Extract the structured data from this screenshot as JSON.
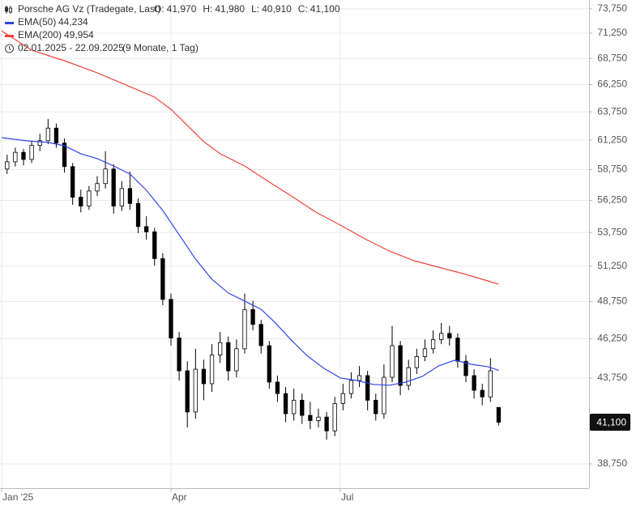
{
  "chart_data": {
    "type": "candlestick",
    "title": "Porsche AG Vz (Tradegate, Last)",
    "ohlc_labels": [
      {
        "key": "O:",
        "text": "41,970"
      },
      {
        "key": "H:",
        "text": "41,980"
      },
      {
        "key": "L:",
        "text": "40,910"
      },
      {
        "key": "C:",
        "text": "41,100"
      }
    ],
    "date_range": "02.01.2025 - 22.09.2025",
    "period": "(9 Monate, 1 Tag)",
    "log_scale": true,
    "grid": true,
    "ylim": [
      37440,
      74674
    ],
    "yticks": [
      {
        "value": 73750,
        "label": "73,750"
      },
      {
        "value": 71250,
        "label": "71,250"
      },
      {
        "value": 68750,
        "label": "68,750"
      },
      {
        "value": 66250,
        "label": "66,250"
      },
      {
        "value": 63750,
        "label": "63,750"
      },
      {
        "value": 61250,
        "label": "61,250"
      },
      {
        "value": 58750,
        "label": "58,750"
      },
      {
        "value": 56250,
        "label": "56,250"
      },
      {
        "value": 53750,
        "label": "53,750"
      },
      {
        "value": 51250,
        "label": "51,250"
      },
      {
        "value": 48750,
        "label": "48,750"
      },
      {
        "value": 46250,
        "label": "46,250"
      },
      {
        "value": 43750,
        "label": "43,750"
      },
      {
        "value": 38750,
        "label": "38,750"
      }
    ],
    "xlim": [
      -0.6,
      215.1
    ],
    "xticks": [
      {
        "value": 0,
        "label": "Jan '25"
      },
      {
        "value": 62,
        "label": "Apr"
      },
      {
        "value": 124,
        "label": "Jul"
      }
    ],
    "candles": {
      "up_color": "#ffffff",
      "down_color": "#000000",
      "x": [
        2,
        5,
        8,
        11,
        14,
        17,
        20,
        23,
        26,
        29,
        32,
        35,
        38,
        41,
        44,
        47,
        50,
        53,
        56,
        59,
        62,
        65,
        68,
        71,
        74,
        77,
        80,
        83,
        86,
        89,
        92,
        95,
        98,
        101,
        104,
        107,
        110,
        113,
        116,
        119,
        122,
        125,
        128,
        131,
        134,
        137,
        140,
        143,
        146,
        149,
        152,
        155,
        158,
        161,
        164,
        167,
        170,
        173,
        176,
        179,
        182
      ],
      "open": [
        58800,
        59400,
        60200,
        59600,
        60800,
        61200,
        62300,
        61000,
        59000,
        56500,
        55800,
        57000,
        57600,
        58800,
        55800,
        57200,
        56000,
        54200,
        53800,
        51800,
        48900,
        46300,
        44200,
        41700,
        44300,
        43400,
        45200,
        46000,
        44200,
        45600,
        48200,
        47200,
        45800,
        43500,
        42800,
        41600,
        42400,
        41500,
        41200,
        41400,
        40600,
        42200,
        42800,
        43600,
        43900,
        42400,
        41600,
        43800,
        45800,
        43300,
        44400,
        45100,
        45600,
        46200,
        46600,
        46300,
        44800,
        43900,
        43000,
        42600,
        41970
      ],
      "high": [
        60000,
        60600,
        60500,
        61200,
        61800,
        63100,
        62700,
        61400,
        59300,
        57100,
        57400,
        58200,
        60300,
        59200,
        57800,
        58600,
        56400,
        55000,
        54100,
        52200,
        49300,
        46700,
        44800,
        45600,
        44900,
        45900,
        46700,
        46400,
        46200,
        49300,
        48800,
        47500,
        46100,
        43900,
        43200,
        43100,
        42800,
        42300,
        41900,
        41700,
        42600,
        43400,
        44100,
        44500,
        44200,
        42800,
        44600,
        47100,
        46100,
        44900,
        45600,
        46200,
        46800,
        47300,
        47100,
        46600,
        45200,
        44300,
        43400,
        45000,
        41980
      ],
      "low": [
        58400,
        59000,
        59100,
        59300,
        60300,
        60900,
        60600,
        58500,
        55900,
        55300,
        55500,
        56600,
        57200,
        55200,
        55400,
        55500,
        53700,
        53200,
        51300,
        48500,
        45800,
        43600,
        40800,
        41300,
        42400,
        42900,
        44700,
        43600,
        43800,
        45300,
        46800,
        45300,
        43100,
        42300,
        41100,
        41200,
        41000,
        40700,
        40800,
        40100,
        40300,
        41800,
        42500,
        43200,
        41800,
        41200,
        41300,
        43500,
        42700,
        43000,
        44000,
        44800,
        45300,
        45900,
        45800,
        44400,
        43500,
        42500,
        42100,
        42300,
        40910
      ],
      "close": [
        59400,
        60200,
        59600,
        60800,
        61200,
        62300,
        61000,
        59000,
        56500,
        55800,
        57000,
        57600,
        58800,
        55800,
        57200,
        56000,
        54200,
        53800,
        51800,
        48900,
        46300,
        44200,
        41700,
        44300,
        43400,
        45200,
        46000,
        44200,
        45600,
        48200,
        47200,
        45800,
        43500,
        42800,
        41600,
        42400,
        41500,
        41200,
        41400,
        40600,
        42200,
        42800,
        43600,
        43900,
        42400,
        41600,
        43800,
        45800,
        43300,
        44400,
        45100,
        45600,
        46200,
        46600,
        46300,
        44800,
        43900,
        43000,
        42600,
        44200,
        41100
      ]
    },
    "last_price_label": "41,100",
    "series": [
      {
        "name": "EMA(50)",
        "color": "#2f46e6",
        "last_label": "44,234",
        "x": [
          0,
          9,
          17,
          23,
          29,
          35,
          41,
          47,
          53,
          59,
          65,
          71,
          77,
          83,
          89,
          95,
          100,
          106,
          112,
          118,
          124,
          130,
          136,
          142,
          148,
          154,
          160,
          166,
          172,
          178,
          182
        ],
        "values": [
          61470,
          61190,
          61050,
          60770,
          60080,
          59670,
          59050,
          58380,
          57060,
          55450,
          53580,
          51770,
          50310,
          49340,
          48780,
          48220,
          47340,
          46180,
          45130,
          44360,
          43760,
          43600,
          43360,
          43310,
          43500,
          43850,
          44510,
          44870,
          44610,
          44460,
          44234
        ]
      },
      {
        "name": "EMA(200)",
        "color": "#f0433a",
        "last_label": "49,954",
        "x": [
          0,
          11,
          23,
          35,
          47,
          56,
          62,
          68,
          74,
          80,
          89,
          98,
          106,
          115,
          124,
          133,
          142,
          151,
          160,
          169,
          178,
          182
        ],
        "values": [
          71490,
          69560,
          68530,
          67370,
          66060,
          65090,
          63980,
          62540,
          61120,
          60080,
          59050,
          57720,
          56610,
          55330,
          54320,
          53270,
          52360,
          51650,
          51180,
          50710,
          50190,
          49954
        ]
      }
    ]
  }
}
